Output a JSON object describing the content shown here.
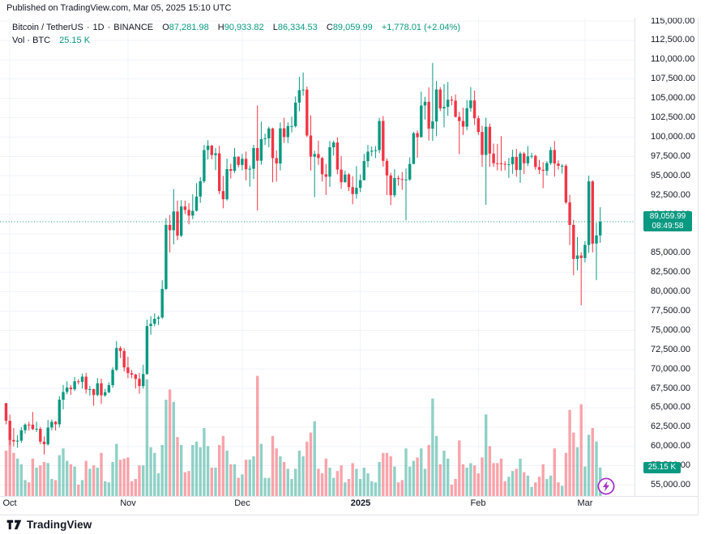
{
  "published_bar": {
    "text": "Published on TradingView.com, Mar 05, 2025 15:10 UTC"
  },
  "legend": {
    "symbol": "Bitcoin / TetherUS",
    "sep": "·",
    "interval": "1D",
    "exchange": "BINANCE",
    "labels": {
      "o": "O",
      "h": "H",
      "l": "L",
      "c": "C"
    },
    "o": "87,281.98",
    "h": "90,933.82",
    "l": "86,334.53",
    "c": "89,059.99",
    "change": "+1,778.01 (+2.04%)",
    "vol_label": "Vol · BTC",
    "vol_value": "25.15 K"
  },
  "price_label": {
    "price": "89,059.99",
    "countdown": "08:49:58"
  },
  "volume_label": {
    "value": "25.15 K"
  },
  "attribution": {
    "logo_text": "TradingView"
  },
  "colors": {
    "up": "#089981",
    "down": "#F23645",
    "volume_up": "rgba(8,153,129,0.45)",
    "volume_down": "rgba(242,54,69,0.45)",
    "grid": "#f0f3fa",
    "frame": "#e0e3eb",
    "text": "#131722",
    "badge_bg": "#089981",
    "badge_text": "#ffffff",
    "lightning": "#A832C8",
    "background": "#ffffff"
  },
  "chart_data": {
    "type": "candlestick",
    "title": "Bitcoin / TetherUS, 1D, BINANCE",
    "start_date": "2024-09-30",
    "interval": "1D",
    "volume_unit": "K BTC",
    "current_price": 89059.99,
    "y_axis": {
      "min": 55000,
      "max": 115000,
      "step": 2500
    },
    "price_ticks": [
      {
        "value": 115000,
        "label": "115,000.00"
      },
      {
        "value": 112500,
        "label": "112,500.00"
      },
      {
        "value": 110000,
        "label": "110,000.00"
      },
      {
        "value": 107500,
        "label": "107,500.00"
      },
      {
        "value": 105000,
        "label": "105,000.00"
      },
      {
        "value": 102500,
        "label": "102,500.00"
      },
      {
        "value": 100000,
        "label": "100,000.00"
      },
      {
        "value": 97500,
        "label": "97,500.00"
      },
      {
        "value": 95000,
        "label": "95,000.00"
      },
      {
        "value": 92500,
        "label": "92,500.00"
      },
      {
        "value": 90000,
        "label": "90,000.00"
      },
      {
        "value": 85000,
        "label": "85,000.00"
      },
      {
        "value": 82500,
        "label": "82,500.00"
      },
      {
        "value": 80000,
        "label": "80,000.00"
      },
      {
        "value": 77500,
        "label": "77,500.00"
      },
      {
        "value": 75000,
        "label": "75,000.00"
      },
      {
        "value": 72500,
        "label": "72,500.00"
      },
      {
        "value": 70000,
        "label": "70,000.00"
      },
      {
        "value": 67500,
        "label": "67,500.00"
      },
      {
        "value": 65000,
        "label": "65,000.00"
      },
      {
        "value": 62500,
        "label": "62,500.00"
      },
      {
        "value": 60000,
        "label": "60,000.00"
      },
      {
        "value": 57500,
        "label": "57,500.00"
      },
      {
        "value": 55000,
        "label": "55,000.00"
      }
    ],
    "time_ticks": [
      {
        "text": "Oct",
        "index": 1,
        "bold": false
      },
      {
        "text": "Nov",
        "index": 32,
        "bold": false
      },
      {
        "text": "Dec",
        "index": 62,
        "bold": false
      },
      {
        "text": "2025",
        "index": 93,
        "bold": true
      },
      {
        "text": "Feb",
        "index": 124,
        "bold": false
      },
      {
        "text": "Mar",
        "index": 152,
        "bold": false
      }
    ],
    "candles_format": [
      "open",
      "high",
      "low",
      "close",
      "volume_k_btc"
    ],
    "candles": [
      [
        65600,
        65620,
        62860,
        63330,
        40
      ],
      [
        63330,
        64100,
        60160,
        60840,
        55
      ],
      [
        60840,
        62380,
        60000,
        60650,
        38
      ],
      [
        60650,
        61480,
        59830,
        60750,
        33
      ],
      [
        60750,
        62480,
        60460,
        62090,
        28
      ],
      [
        62090,
        62980,
        61680,
        62820,
        14
      ],
      [
        62820,
        63190,
        62050,
        62810,
        12
      ],
      [
        62810,
        64460,
        62120,
        62230,
        33
      ],
      [
        62230,
        63200,
        61860,
        62280,
        25
      ],
      [
        62280,
        62540,
        60300,
        60630,
        27
      ],
      [
        60630,
        61300,
        58950,
        60280,
        30
      ],
      [
        60280,
        63410,
        60090,
        62440,
        29
      ],
      [
        62440,
        63480,
        62100,
        63190,
        15
      ],
      [
        63190,
        63290,
        62050,
        62870,
        14
      ],
      [
        62870,
        66500,
        62450,
        66050,
        36
      ],
      [
        66050,
        67950,
        64800,
        67040,
        42
      ],
      [
        67040,
        68420,
        66750,
        67610,
        31
      ],
      [
        67610,
        67940,
        66660,
        67400,
        28
      ],
      [
        67400,
        68990,
        67170,
        68420,
        26
      ],
      [
        68420,
        68690,
        68010,
        68360,
        10
      ],
      [
        68360,
        69400,
        67480,
        69030,
        14
      ],
      [
        69030,
        69520,
        66830,
        67370,
        31
      ],
      [
        67370,
        67810,
        66560,
        67410,
        24
      ],
      [
        67410,
        67480,
        65260,
        66650,
        27
      ],
      [
        66650,
        68850,
        66510,
        68170,
        25
      ],
      [
        68170,
        68770,
        65500,
        66600,
        38
      ],
      [
        66600,
        67440,
        66410,
        67010,
        13
      ],
      [
        67010,
        68290,
        66890,
        67930,
        12
      ],
      [
        67930,
        70230,
        67580,
        69910,
        30
      ],
      [
        69910,
        73620,
        69730,
        72720,
        46
      ],
      [
        72720,
        72950,
        71430,
        72340,
        32
      ],
      [
        72340,
        72700,
        69690,
        70215,
        33
      ],
      [
        70215,
        71600,
        68820,
        69480,
        34
      ],
      [
        69480,
        69910,
        68820,
        69290,
        13
      ],
      [
        69290,
        69390,
        67480,
        68740,
        15
      ],
      [
        68740,
        69500,
        66835,
        67810,
        27
      ],
      [
        67810,
        70550,
        67470,
        69360,
        27
      ],
      [
        69360,
        76400,
        69280,
        75570,
        103
      ],
      [
        75570,
        76850,
        74440,
        75860,
        43
      ],
      [
        75860,
        77200,
        75555,
        76510,
        38
      ],
      [
        76510,
        76900,
        75714,
        76680,
        20
      ],
      [
        76680,
        81500,
        76490,
        80370,
        45
      ],
      [
        80370,
        89530,
        80216,
        88650,
        85
      ],
      [
        88650,
        89940,
        85072,
        87950,
        94
      ],
      [
        87950,
        93265,
        86127,
        90375,
        83
      ],
      [
        90375,
        91790,
        86668,
        87250,
        52
      ],
      [
        87250,
        91850,
        87072,
        91030,
        45
      ],
      [
        91030,
        91780,
        90056,
        90590,
        21
      ],
      [
        90590,
        91449,
        88722,
        89855,
        22
      ],
      [
        89855,
        92594,
        89376,
        90465,
        45
      ],
      [
        90465,
        94050,
        90373,
        92310,
        48
      ],
      [
        92310,
        94831,
        91500,
        94286,
        43
      ],
      [
        94286,
        98988,
        94040,
        98320,
        60
      ],
      [
        98320,
        99588,
        97112,
        98890,
        44
      ],
      [
        98890,
        99000,
        97128,
        97670,
        25
      ],
      [
        97670,
        98564,
        95734,
        97900,
        25
      ],
      [
        97900,
        98871,
        92600,
        93010,
        45
      ],
      [
        93010,
        94973,
        90791,
        91965,
        53
      ],
      [
        91965,
        97219,
        91792,
        95860,
        40
      ],
      [
        95860,
        96546,
        94648,
        95640,
        28
      ],
      [
        95640,
        98588,
        95364,
        97460,
        28
      ],
      [
        97460,
        97500,
        96085,
        96405,
        16
      ],
      [
        96405,
        97813,
        95712,
        97185,
        19
      ],
      [
        97185,
        98130,
        94395,
        95840,
        32
      ],
      [
        95840,
        96305,
        93578,
        95900,
        32
      ],
      [
        95900,
        99000,
        94587,
        98590,
        35
      ],
      [
        98590,
        104088,
        90500,
        96945,
        106
      ],
      [
        96945,
        102000,
        96433,
        99740,
        46
      ],
      [
        99740,
        100439,
        98966,
        99830,
        16
      ],
      [
        99830,
        101351,
        98656,
        101110,
        16
      ],
      [
        101110,
        101215,
        94150,
        97280,
        53
      ],
      [
        97280,
        98270,
        94256,
        96590,
        42
      ],
      [
        96590,
        101888,
        95689,
        101130,
        35
      ],
      [
        101130,
        102495,
        99250,
        100000,
        30
      ],
      [
        100000,
        101905,
        99225,
        101420,
        24
      ],
      [
        101420,
        102650,
        100609,
        101420,
        15
      ],
      [
        101420,
        105250,
        101234,
        104460,
        24
      ],
      [
        104460,
        107793,
        103333,
        106060,
        40
      ],
      [
        106060,
        108353,
        105341,
        106140,
        35
      ],
      [
        106140,
        106528,
        100000,
        100200,
        48
      ],
      [
        100200,
        102800,
        95672,
        97470,
        56
      ],
      [
        97470,
        98233,
        92232,
        97805,
        66
      ],
      [
        97805,
        99540,
        96398,
        97290,
        24
      ],
      [
        97290,
        97448,
        94250,
        95190,
        20
      ],
      [
        95190,
        96538,
        92520,
        94880,
        33
      ],
      [
        94880,
        99487,
        93569,
        98680,
        25
      ],
      [
        98680,
        99536,
        97618,
        99300,
        16
      ],
      [
        99300,
        99963,
        95197,
        95800,
        22
      ],
      [
        95800,
        97544,
        93310,
        94160,
        27
      ],
      [
        94160,
        95637,
        94135,
        95160,
        12
      ],
      [
        95160,
        95340,
        93009,
        93530,
        15
      ],
      [
        93530,
        94940,
        91317,
        92640,
        29
      ],
      [
        92640,
        96250,
        92033,
        93430,
        24
      ],
      [
        93430,
        95151,
        92888,
        94420,
        15
      ],
      [
        94420,
        97839,
        94392,
        96890,
        25
      ],
      [
        96890,
        98976,
        96100,
        98110,
        20
      ],
      [
        98110,
        98778,
        97514,
        98240,
        13
      ],
      [
        98240,
        98836,
        97276,
        98310,
        12
      ],
      [
        98310,
        102480,
        97925,
        102080,
        30
      ],
      [
        102080,
        102724,
        96181,
        96920,
        38
      ],
      [
        96920,
        97250,
        92500,
        95040,
        38
      ],
      [
        95040,
        95382,
        91203,
        92480,
        35
      ],
      [
        92480,
        95836,
        92206,
        94700,
        26
      ],
      [
        94700,
        95050,
        93712,
        94570,
        12
      ],
      [
        94570,
        95473,
        93176,
        94490,
        14
      ],
      [
        94490,
        95940,
        89256,
        94516,
        42
      ],
      [
        94516,
        97371,
        94336,
        96530,
        26
      ],
      [
        96530,
        100681,
        96500,
        100500,
        31
      ],
      [
        100500,
        100866,
        97335,
        99990,
        34
      ],
      [
        99990,
        105865,
        99950,
        104080,
        42
      ],
      [
        104080,
        105200,
        102266,
        104556,
        24
      ],
      [
        104556,
        106422,
        99550,
        101090,
        45
      ],
      [
        101090,
        109588,
        99500,
        102020,
        86
      ],
      [
        102020,
        107240,
        100100,
        106150,
        53
      ],
      [
        106150,
        106450,
        103350,
        103710,
        28
      ],
      [
        103710,
        106850,
        101257,
        103910,
        40
      ],
      [
        103910,
        107120,
        102750,
        104820,
        33
      ],
      [
        104820,
        105288,
        104106,
        104710,
        10
      ],
      [
        104710,
        105500,
        102520,
        102620,
        15
      ],
      [
        102620,
        103260,
        97777,
        102080,
        49
      ],
      [
        102080,
        103800,
        100272,
        101340,
        28
      ],
      [
        101340,
        104785,
        100900,
        103730,
        25
      ],
      [
        103730,
        106457,
        103278,
        104735,
        29
      ],
      [
        104735,
        106012,
        101560,
        102430,
        27
      ],
      [
        102430,
        102783,
        100279,
        100655,
        20
      ],
      [
        100655,
        101456,
        96150,
        97690,
        34
      ],
      [
        97690,
        102500,
        91231,
        101330,
        72
      ],
      [
        101330,
        101732,
        96150,
        97870,
        44
      ],
      [
        97870,
        99149,
        96155,
        96615,
        29
      ],
      [
        96615,
        99120,
        95676,
        96590,
        29
      ],
      [
        96590,
        100138,
        95628,
        96530,
        33
      ],
      [
        96530,
        96880,
        95688,
        96480,
        13
      ],
      [
        96480,
        97323,
        94713,
        96500,
        17
      ],
      [
        96500,
        98345,
        95256,
        97440,
        22
      ],
      [
        97440,
        98478,
        94876,
        95750,
        24
      ],
      [
        95750,
        98119,
        94088,
        97870,
        33
      ],
      [
        97870,
        98083,
        95217,
        96610,
        21
      ],
      [
        96610,
        98826,
        96252,
        97510,
        18
      ],
      [
        97510,
        97972,
        97223,
        97570,
        8
      ],
      [
        97570,
        97704,
        95772,
        96120,
        12
      ],
      [
        96120,
        97046,
        95217,
        95770,
        17
      ],
      [
        95770,
        96754,
        93388,
        95630,
        28
      ],
      [
        95630,
        96898,
        95022,
        96640,
        15
      ],
      [
        96640,
        98720,
        96404,
        98330,
        18
      ],
      [
        98330,
        99475,
        94871,
        96580,
        42
      ],
      [
        96580,
        96990,
        95791,
        96280,
        12
      ],
      [
        96280,
        96500,
        95278,
        96290,
        9
      ],
      [
        96290,
        96500,
        91349,
        91550,
        38
      ],
      [
        91550,
        92540,
        86050,
        88640,
        76
      ],
      [
        88640,
        89286,
        82131,
        84250,
        56
      ],
      [
        84250,
        87078,
        82760,
        84700,
        43
      ],
      [
        84700,
        85120,
        78258,
        84370,
        81
      ],
      [
        84370,
        86558,
        83794,
        86060,
        26
      ],
      [
        86060,
        95000,
        85040,
        94270,
        54
      ],
      [
        94270,
        94416,
        85081,
        86220,
        60
      ],
      [
        86220,
        88911,
        81500,
        87281,
        48
      ],
      [
        87281.98,
        90933.82,
        86334.53,
        89059.99,
        25.15
      ]
    ]
  }
}
